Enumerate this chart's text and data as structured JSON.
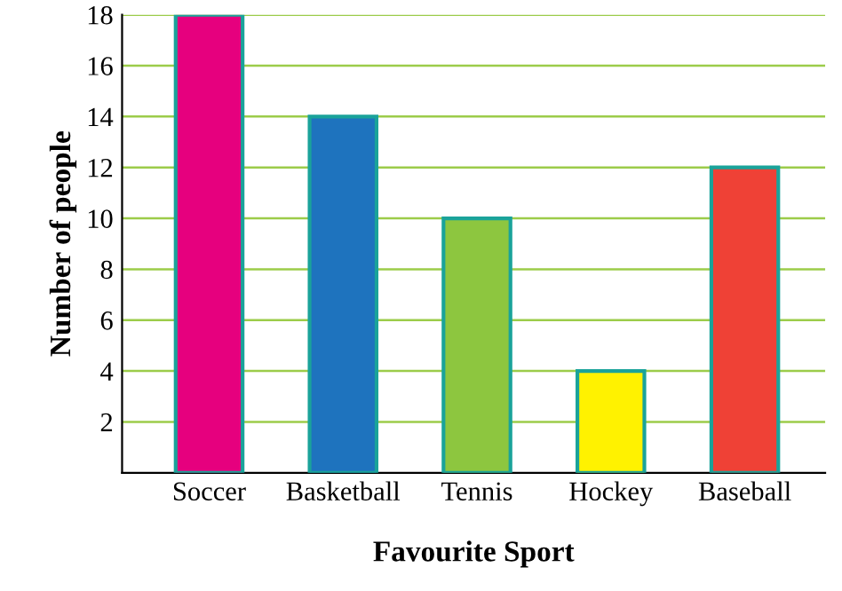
{
  "chart_data": {
    "type": "bar",
    "xlabel": "Favourite Sport",
    "ylabel": "Number of people",
    "categories": [
      "Soccer",
      "Basketball",
      "Tennis",
      "Hockey",
      "Baseball"
    ],
    "values": [
      18,
      14,
      10,
      4,
      12
    ],
    "colors": [
      "#e6007e",
      "#1e73be",
      "#8dc63f",
      "#fff200",
      "#ef4136"
    ],
    "ylim": [
      0,
      18
    ],
    "yticks": [
      2,
      4,
      6,
      8,
      10,
      12,
      14,
      16,
      18
    ],
    "grid": "y"
  }
}
